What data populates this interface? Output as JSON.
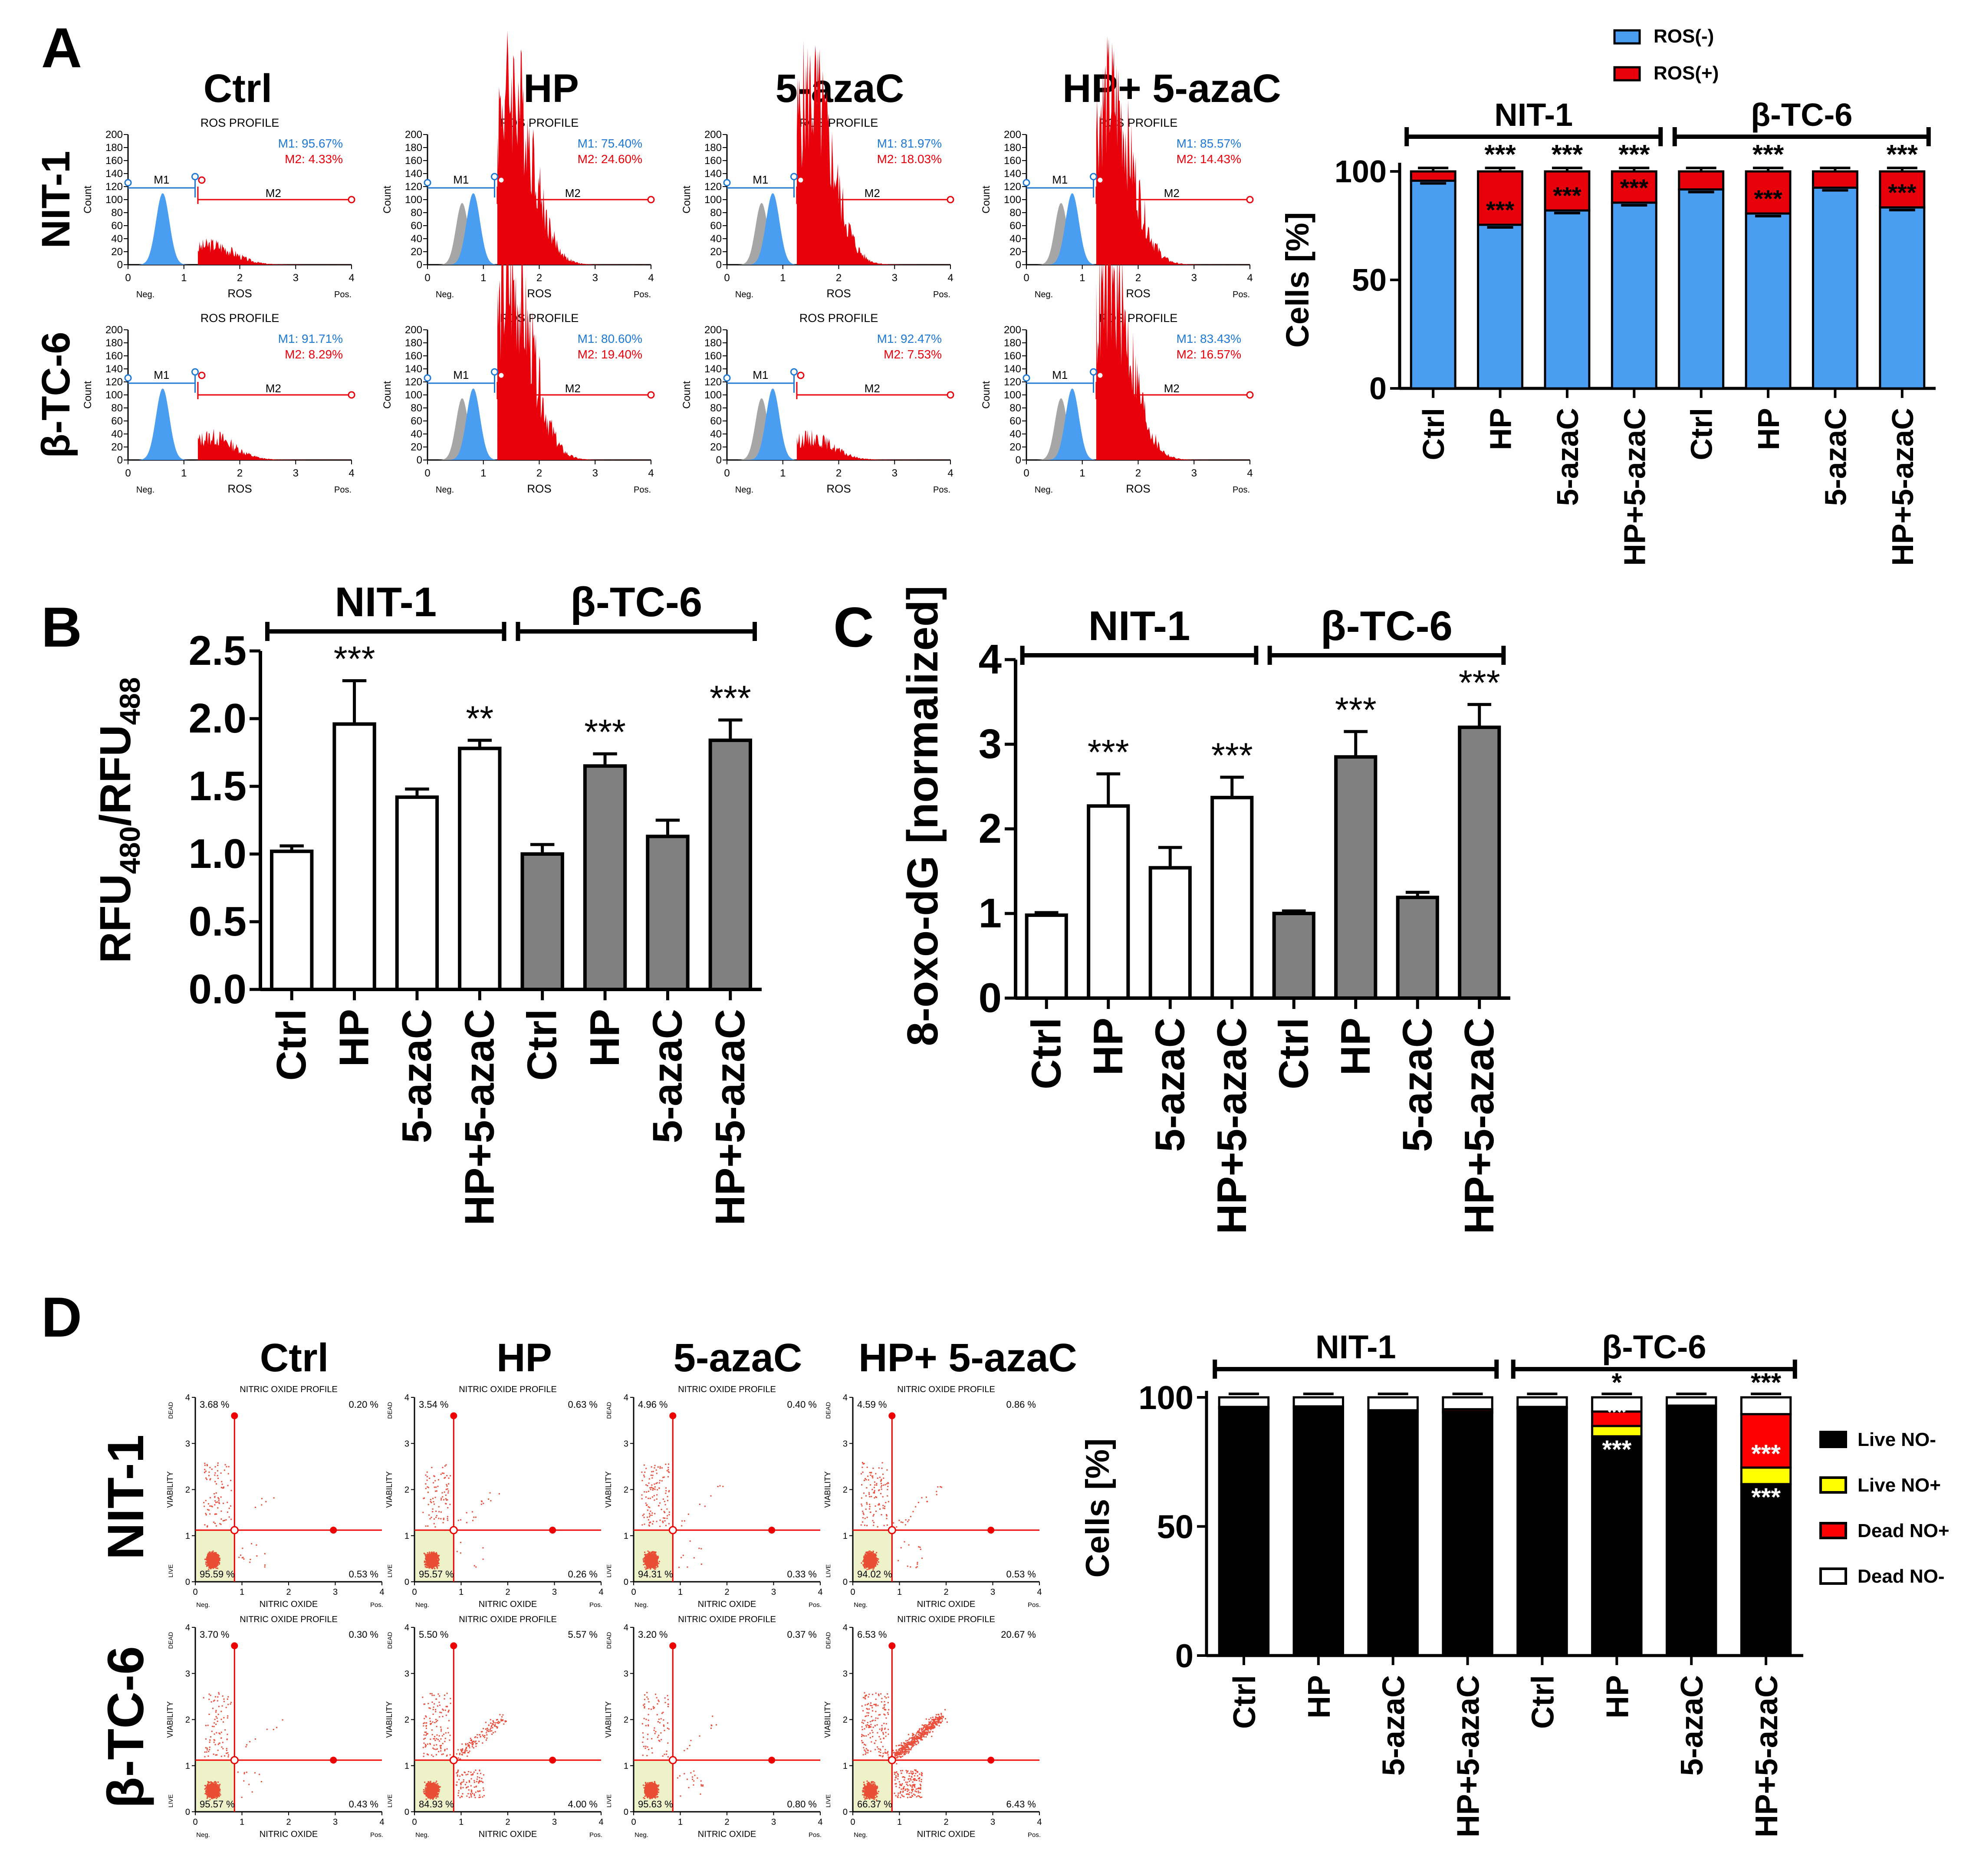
{
  "panels": {
    "A": "A",
    "B": "B",
    "C": "C",
    "D": "D"
  },
  "colors": {
    "ros_neg": "#4a9ef2",
    "ros_pos": "#e8000b",
    "nit1_bar": "#ffffff",
    "btc6_bar": "#808080",
    "live_no_neg": "#000000",
    "live_no_pos": "#ffff00",
    "dead_no_pos": "#ff0000",
    "dead_no_neg": "#ffffff",
    "hist_gray": "#a6a6a6",
    "gate_m1": "#1e78d6",
    "gate_m2": "#e8000b"
  },
  "conditions": [
    "Ctrl",
    "HP",
    "5-azaC",
    "HP+ 5-azaC"
  ],
  "cell_lines": [
    "NIT-1",
    "β-TC-6"
  ],
  "histograms": {
    "title": "ROS PROFILE",
    "xlabel": "ROS",
    "ylabel": "Count",
    "neg": "Neg.",
    "pos": "Pos.",
    "m1_label": "M1",
    "m2_label": "M2",
    "yticks": [
      "200",
      "180",
      "160",
      "140",
      "120",
      "100",
      "80",
      "60",
      "40",
      "20",
      "0"
    ],
    "xticks": [
      "0",
      "1",
      "2",
      "3",
      "4"
    ],
    "rows": [
      {
        "cell": "NIT-1",
        "items": [
          {
            "m1": "M1: 95.67%",
            "m2": "M2: 4.33%",
            "gray": false
          },
          {
            "m1": "M1: 75.40%",
            "m2": "M2: 24.60%",
            "gray": true
          },
          {
            "m1": "M1: 81.97%",
            "m2": "M2: 18.03%",
            "gray": true
          },
          {
            "m1": "M1: 85.57%",
            "m2": "M2: 14.43%",
            "gray": true
          }
        ]
      },
      {
        "cell": "β-TC-6",
        "items": [
          {
            "m1": "M1: 91.71%",
            "m2": "M2: 8.29%",
            "gray": false
          },
          {
            "m1": "M1: 80.60%",
            "m2": "M2: 19.40%",
            "gray": true
          },
          {
            "m1": "M1: 92.47%",
            "m2": "M2: 7.53%",
            "gray": true
          },
          {
            "m1": "M1: 83.43%",
            "m2": "M2: 16.57%",
            "gray": true
          }
        ]
      }
    ]
  },
  "dotplots": {
    "title": "NITRIC OXIDE PROFILE",
    "xlabel": "NITRIC OXIDE",
    "ylabel": "VIABILITY",
    "dead": "DEAD",
    "live": "LIVE",
    "neg": "Neg.",
    "pos": "Pos.",
    "ticks": [
      "0",
      "1",
      "2",
      "3",
      "4"
    ],
    "rows": [
      {
        "cell": "NIT-1",
        "items": [
          {
            "ul": "3.68 %",
            "ur": "0.20 %",
            "ll": "95.59 %",
            "lr": "0.53 %"
          },
          {
            "ul": "3.54 %",
            "ur": "0.63 %",
            "ll": "95.57 %",
            "lr": "0.26 %"
          },
          {
            "ul": "4.96 %",
            "ur": "0.40 %",
            "ll": "94.31 %",
            "lr": "0.33 %"
          },
          {
            "ul": "4.59 %",
            "ur": "0.86 %",
            "ll": "94.02 %",
            "lr": "0.53 %"
          }
        ]
      },
      {
        "cell": "β-TC-6",
        "items": [
          {
            "ul": "3.70 %",
            "ur": "0.30 %",
            "ll": "95.57 %",
            "lr": "0.43 %"
          },
          {
            "ul": "5.50 %",
            "ur": "5.57 %",
            "ll": "84.93 %",
            "lr": "4.00 %"
          },
          {
            "ul": "3.20 %",
            "ur": "0.37 %",
            "ll": "95.63 %",
            "lr": "0.80 %"
          },
          {
            "ul": "6.53 %",
            "ur": "20.67 %",
            "ll": "66.37 %",
            "lr": "6.43 %"
          }
        ]
      }
    ]
  },
  "chart_data": [
    {
      "id": "A-right",
      "type": "bar",
      "stacked": true,
      "categories": [
        "Ctrl",
        "HP",
        "5-azaC",
        "HP+5-azaC",
        "Ctrl",
        "HP",
        "5-azaC",
        "HP+5-azaC"
      ],
      "groups": [
        {
          "label": "NIT-1",
          "from": 0,
          "to": 3
        },
        {
          "label": "β-TC-6",
          "from": 4,
          "to": 7
        }
      ],
      "series": [
        {
          "name": "ROS(-)",
          "values": [
            95.7,
            75.4,
            82.0,
            85.6,
            91.7,
            80.6,
            92.5,
            83.4
          ]
        },
        {
          "name": "ROS(+)",
          "values": [
            4.3,
            24.6,
            18.0,
            14.4,
            8.3,
            19.4,
            7.5,
            16.6
          ]
        }
      ],
      "sig_top": [
        "",
        "***",
        "***",
        "***",
        "",
        "***",
        "",
        "***"
      ],
      "sig_inside": [
        "",
        "***",
        "***",
        "***",
        "",
        "***",
        "",
        "***"
      ],
      "ylabel": "Cells [%]",
      "ylim": [
        0,
        100
      ],
      "yticks": [
        "0",
        "50",
        "100"
      ]
    },
    {
      "id": "B",
      "type": "bar",
      "categories": [
        "Ctrl",
        "HP",
        "5-azaC",
        "HP+5-azaC",
        "Ctrl",
        "HP",
        "5-azaC",
        "HP+5-azaC"
      ],
      "groups": [
        {
          "label": "NIT-1",
          "from": 0,
          "to": 3
        },
        {
          "label": "β-TC-6",
          "from": 4,
          "to": 7
        }
      ],
      "values": [
        1.02,
        1.96,
        1.42,
        1.78,
        1.0,
        1.65,
        1.13,
        1.84
      ],
      "errors": [
        0.04,
        0.32,
        0.06,
        0.06,
        0.07,
        0.09,
        0.12,
        0.15
      ],
      "sig": [
        "",
        "***",
        "",
        "**",
        "",
        "***",
        "",
        "***"
      ],
      "ylabel": "RFU",
      "ylabel_sub1": "480",
      "ylabel_mid": "/RFU",
      "ylabel_sub2": "488",
      "ylim": [
        0,
        2.5
      ],
      "yticks": [
        "0.0",
        "0.5",
        "1.0",
        "1.5",
        "2.0",
        "2.5"
      ]
    },
    {
      "id": "C",
      "type": "bar",
      "categories": [
        "Ctrl",
        "HP",
        "5-azaC",
        "HP+5-azaC",
        "Ctrl",
        "HP",
        "5-azaC",
        "HP+5-azaC"
      ],
      "groups": [
        {
          "label": "NIT-1",
          "from": 0,
          "to": 3
        },
        {
          "label": "β-TC-6",
          "from": 4,
          "to": 7
        }
      ],
      "values": [
        0.98,
        2.27,
        1.54,
        2.37,
        1.0,
        2.85,
        1.19,
        3.2
      ],
      "errors": [
        0.03,
        0.38,
        0.24,
        0.24,
        0.03,
        0.3,
        0.06,
        0.27
      ],
      "sig": [
        "",
        "***",
        "",
        "***",
        "",
        "***",
        "",
        "***"
      ],
      "ylabel": "8-oxo-dG [normalized]",
      "ylim": [
        0,
        4
      ],
      "yticks": [
        "0",
        "1",
        "2",
        "3",
        "4"
      ]
    },
    {
      "id": "D-right",
      "type": "bar",
      "stacked": true,
      "categories": [
        "Ctrl",
        "HP",
        "5-azaC",
        "HP+5-azaC",
        "Ctrl",
        "HP",
        "5-azaC",
        "HP+5-azaC"
      ],
      "groups": [
        {
          "label": "NIT-1",
          "from": 0,
          "to": 3
        },
        {
          "label": "β-TC-6",
          "from": 4,
          "to": 7
        }
      ],
      "series": [
        {
          "name": "Live NO-",
          "values": [
            95.6,
            95.6,
            94.3,
            94.0,
            95.6,
            84.9,
            95.6,
            66.4
          ]
        },
        {
          "name": "Live NO+",
          "values": [
            0.5,
            0.3,
            0.3,
            0.5,
            0.4,
            4.0,
            0.8,
            6.4
          ]
        },
        {
          "name": "Dead NO+",
          "values": [
            0.2,
            0.6,
            0.4,
            0.9,
            0.3,
            5.6,
            0.4,
            20.7
          ]
        },
        {
          "name": "Dead NO-",
          "values": [
            3.7,
            3.5,
            5.0,
            4.6,
            3.7,
            5.5,
            3.2,
            6.5
          ]
        }
      ],
      "sig_top": [
        "",
        "",
        "",
        "",
        "",
        "*",
        "",
        "***"
      ],
      "sig_mid": [
        "",
        "",
        "",
        "",
        "",
        "**",
        "",
        "***"
      ],
      "sig_low": [
        "",
        "",
        "",
        "",
        "",
        "***",
        "",
        "***"
      ],
      "ylabel": "Cells [%]",
      "ylim": [
        0,
        100
      ],
      "yticks": [
        "0",
        "50",
        "100"
      ]
    }
  ]
}
